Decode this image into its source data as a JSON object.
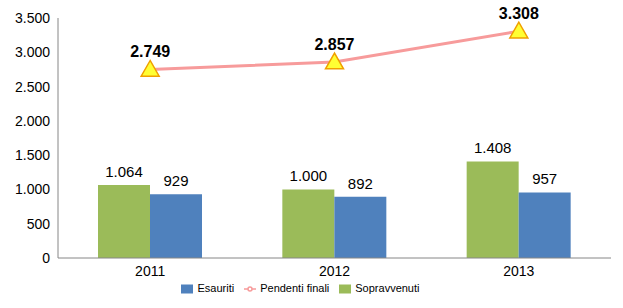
{
  "chart_data": {
    "type": "bar",
    "categories": [
      "2011",
      "2012",
      "2013"
    ],
    "series": [
      {
        "name": "Sopravvenuti",
        "color": "#9bbb59",
        "values": [
          1064,
          1000,
          1408
        ],
        "value_labels": [
          "1.064",
          "1.000",
          "1.408"
        ]
      },
      {
        "name": "Esauriti",
        "color": "#4f81bd",
        "values": [
          929,
          892,
          957
        ]
      },
      {
        "name": "Pendenti finali",
        "type": "line",
        "color": "#f79b9b",
        "marker": "triangle",
        "values": [
          2749,
          2857,
          3308
        ],
        "value_labels": [
          "2.749",
          "2.857",
          "3.308"
        ]
      }
    ],
    "ylim": [
      0,
      3500
    ],
    "yticks": [
      0,
      500,
      {
        "value": 1000,
        "label": "1.000"
      },
      {
        "value": 1500,
        "label": "1.500"
      },
      {
        "value": 2000,
        "label": "2.000"
      },
      {
        "value": 2500,
        "label": "2.500"
      },
      {
        "value": 3000,
        "label": "3.000"
      },
      {
        "value": 3500,
        "label": "3.500"
      }
    ],
    "grid": false,
    "legend": "bottom",
    "data_labels": true
  }
}
